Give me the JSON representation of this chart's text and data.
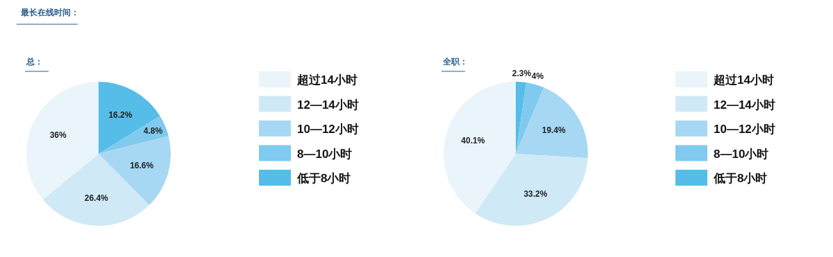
{
  "chart_data": [
    {
      "type": "pie",
      "title": "最长在线时间：",
      "subtitle": "总：",
      "categories": [
        "超过14小时",
        "12—14小时",
        "10—12小时",
        "8—10小时",
        "低于8小时"
      ],
      "values": [
        36,
        26.4,
        16.6,
        4.8,
        16.2
      ],
      "value_labels": [
        "36%",
        "26.4%",
        "16.6%",
        "4.8%",
        "16.2%"
      ],
      "colors": [
        "#eaf4fb",
        "#d0e9f7",
        "#a6d8f3",
        "#7fcaee",
        "#55bde8"
      ],
      "legend": "right"
    },
    {
      "type": "pie",
      "subtitle": "全职：",
      "categories": [
        "超过14小时",
        "12—14小时",
        "10—12小时",
        "8—10小时",
        "低于8小时"
      ],
      "values": [
        40.1,
        33.2,
        19.4,
        4,
        2.3
      ],
      "value_labels": [
        "40.1%",
        "33.2%",
        "19.4%",
        "4%",
        "2.3%"
      ],
      "colors": [
        "#eaf4fb",
        "#d0e9f7",
        "#a6d8f3",
        "#7fcaee",
        "#55bde8"
      ],
      "legend": "right"
    }
  ]
}
